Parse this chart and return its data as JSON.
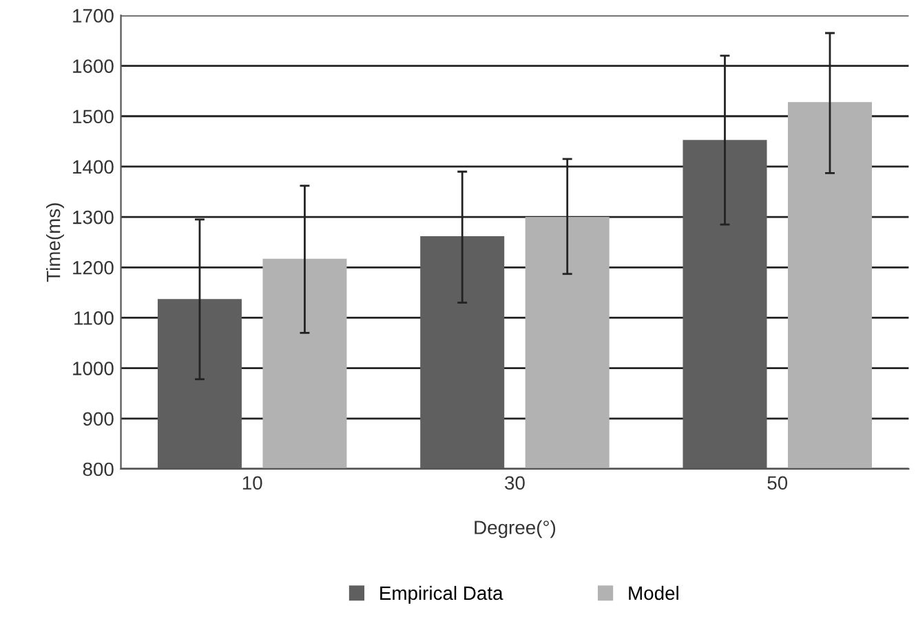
{
  "chart_data": {
    "type": "bar",
    "xlabel": "Degree(°)",
    "ylabel": "Time(ms)",
    "categories": [
      "10",
      "30",
      "50"
    ],
    "series": [
      {
        "name": "Empirical Data",
        "color": "#5f5f5f",
        "values": [
          1137,
          1262,
          1453
        ],
        "errors": [
          [
            978,
            1295
          ],
          [
            1130,
            1390
          ],
          [
            1285,
            1620
          ]
        ]
      },
      {
        "name": "Model",
        "color": "#b2b2b2",
        "values": [
          1217,
          1300,
          1528
        ],
        "errors": [
          [
            1070,
            1362
          ],
          [
            1187,
            1415
          ],
          [
            1387,
            1665
          ]
        ]
      }
    ],
    "ylim": [
      800,
      1700
    ],
    "yticks": [
      800,
      900,
      1000,
      1100,
      1200,
      1300,
      1400,
      1500,
      1600,
      1700
    ],
    "grid": "y",
    "legend": "bottom"
  }
}
